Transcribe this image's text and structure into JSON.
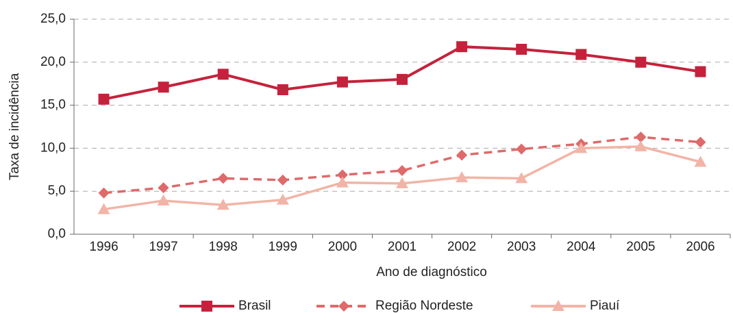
{
  "chart_data": {
    "type": "line",
    "y_label": "Taxa de incidência",
    "x_label": "Ano de diagnóstico",
    "categories": [
      "1996",
      "1997",
      "1998",
      "1999",
      "2000",
      "2001",
      "2002",
      "2003",
      "2004",
      "2005",
      "2006"
    ],
    "series": [
      {
        "name": "Brasil",
        "color": "#c4223c",
        "line_style": "solid",
        "marker": "square",
        "values": [
          15.7,
          17.1,
          18.6,
          16.8,
          17.7,
          18.0,
          21.8,
          21.5,
          20.9,
          20.0,
          18.9
        ]
      },
      {
        "name": "Região Nordeste",
        "color": "#de6a6a",
        "line_style": "dashed",
        "marker": "diamond",
        "values": [
          4.8,
          5.4,
          6.5,
          6.3,
          6.9,
          7.4,
          9.2,
          9.9,
          10.5,
          11.3,
          10.7
        ]
      },
      {
        "name": "Piauí",
        "color": "#f2b4a6",
        "line_style": "solid",
        "marker": "triangle",
        "values": [
          2.9,
          3.9,
          3.4,
          4.0,
          6.0,
          5.9,
          6.6,
          6.5,
          10.0,
          10.2,
          8.4
        ]
      }
    ],
    "ylim": [
      0,
      25
    ],
    "yticks": [
      {
        "value": 0,
        "label": "0,0"
      },
      {
        "value": 5,
        "label": "5,0"
      },
      {
        "value": 10,
        "label": "10,0"
      },
      {
        "value": 15,
        "label": "15,0"
      },
      {
        "value": 20,
        "label": "20,0"
      },
      {
        "value": 25,
        "label": "25,0"
      }
    ],
    "grid": true,
    "legend": "bottom"
  }
}
